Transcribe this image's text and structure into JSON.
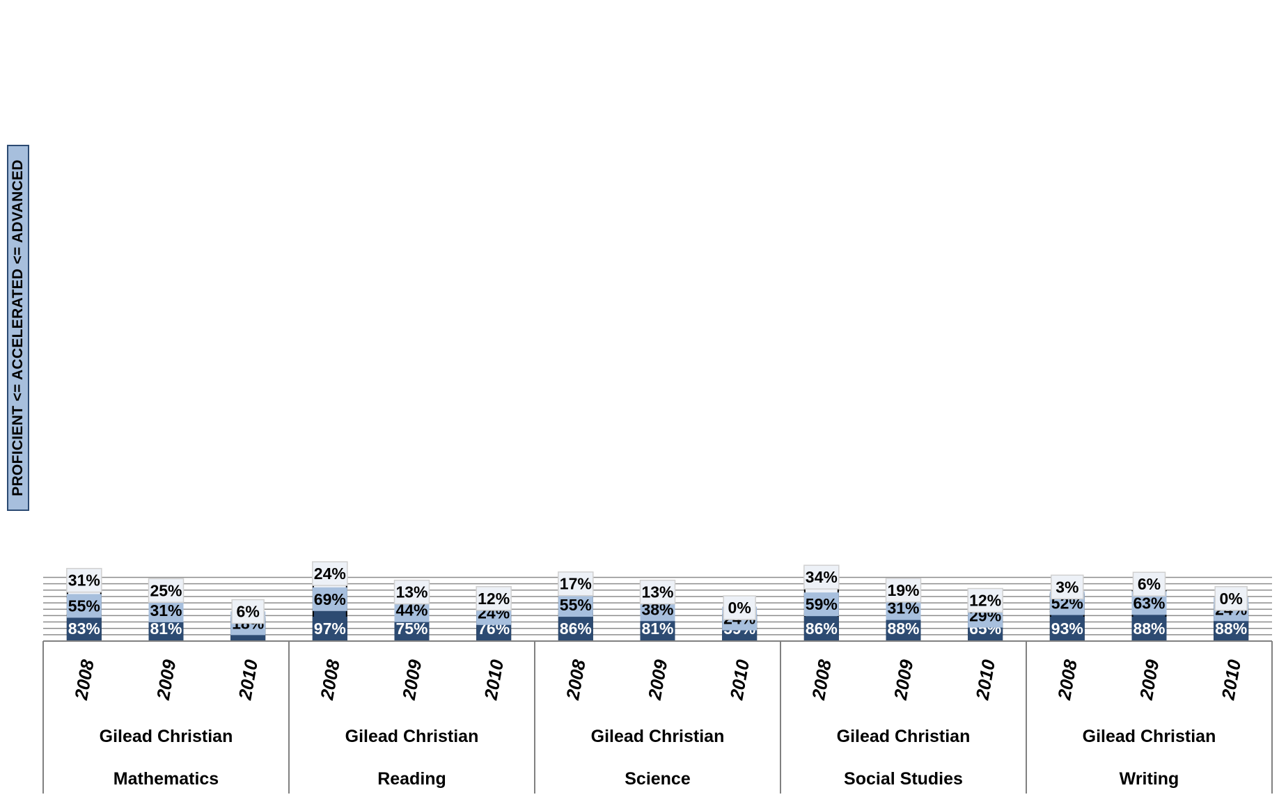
{
  "chart_data": {
    "type": "bar",
    "stacked": true,
    "ylabel": "PROFICIENT <= ACCELERATED <= ADVANCED",
    "ylim": [
      0,
      200
    ],
    "grid": true,
    "group_label_line1": "Gilead Christian",
    "groups": [
      {
        "subject": "Mathematics",
        "years": [
          "2008",
          "2009",
          "2010"
        ]
      },
      {
        "subject": "Reading",
        "years": [
          "2008",
          "2009",
          "2010"
        ]
      },
      {
        "subject": "Science",
        "years": [
          "2008",
          "2009",
          "2010"
        ]
      },
      {
        "subject": "Social Studies",
        "years": [
          "2008",
          "2009",
          "2010"
        ]
      },
      {
        "subject": "Writing",
        "years": [
          "2008",
          "2009",
          "2010"
        ]
      }
    ],
    "series": [
      {
        "level": "proficient",
        "color": "#2d4b72",
        "values": [
          83,
          81,
          47,
          97,
          75,
          76,
          86,
          81,
          59,
          86,
          88,
          65,
          93,
          88,
          88
        ]
      },
      {
        "level": "accelerated",
        "color": "#a7bfdd",
        "values": [
          55,
          31,
          18,
          69,
          44,
          24,
          55,
          38,
          24,
          59,
          31,
          29,
          52,
          63,
          24
        ]
      },
      {
        "level": "advanced",
        "color": "#edf1f7",
        "values": [
          31,
          25,
          6,
          24,
          13,
          12,
          17,
          13,
          0,
          34,
          19,
          12,
          3,
          6,
          0
        ]
      }
    ]
  }
}
